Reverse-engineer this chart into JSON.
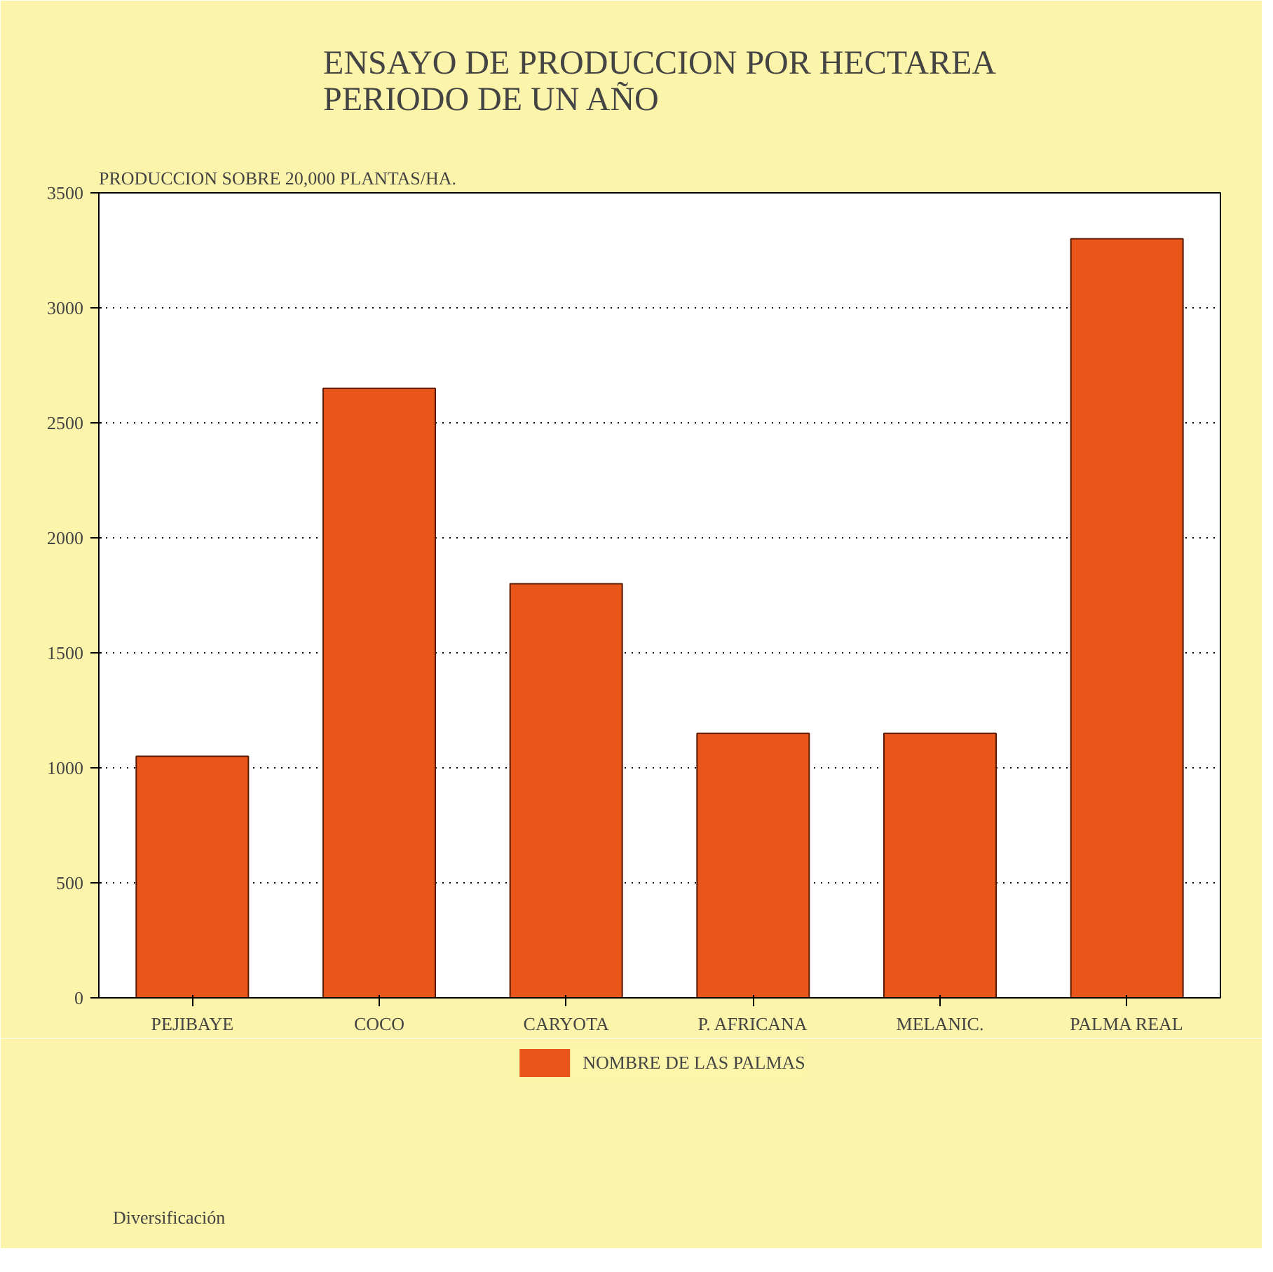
{
  "chart_data": {
    "type": "bar",
    "title": "ENSAYO DE PRODUCCION POR HECTAREA\nPERIODO DE UN AÑO",
    "ylabel": "PRODUCCION SOBRE 20,000 PLANTAS/HA.",
    "categories": [
      "PEJIBAYE",
      "COCO",
      "CARYOTA",
      "P. AFRICANA",
      "MELANIC.",
      "PALMA REAL"
    ],
    "series": [
      {
        "name": "NOMBRE DE LAS PALMAS",
        "color": "#e8561a",
        "values": [
          1050,
          2650,
          1800,
          1150,
          1150,
          3300
        ]
      }
    ],
    "ylim": [
      0,
      3500
    ],
    "yticks": [
      0,
      500,
      1000,
      1500,
      2000,
      2500,
      3000,
      3500
    ],
    "grid": "y",
    "legend": "bottom",
    "annotations": [
      "Diversificación"
    ]
  }
}
